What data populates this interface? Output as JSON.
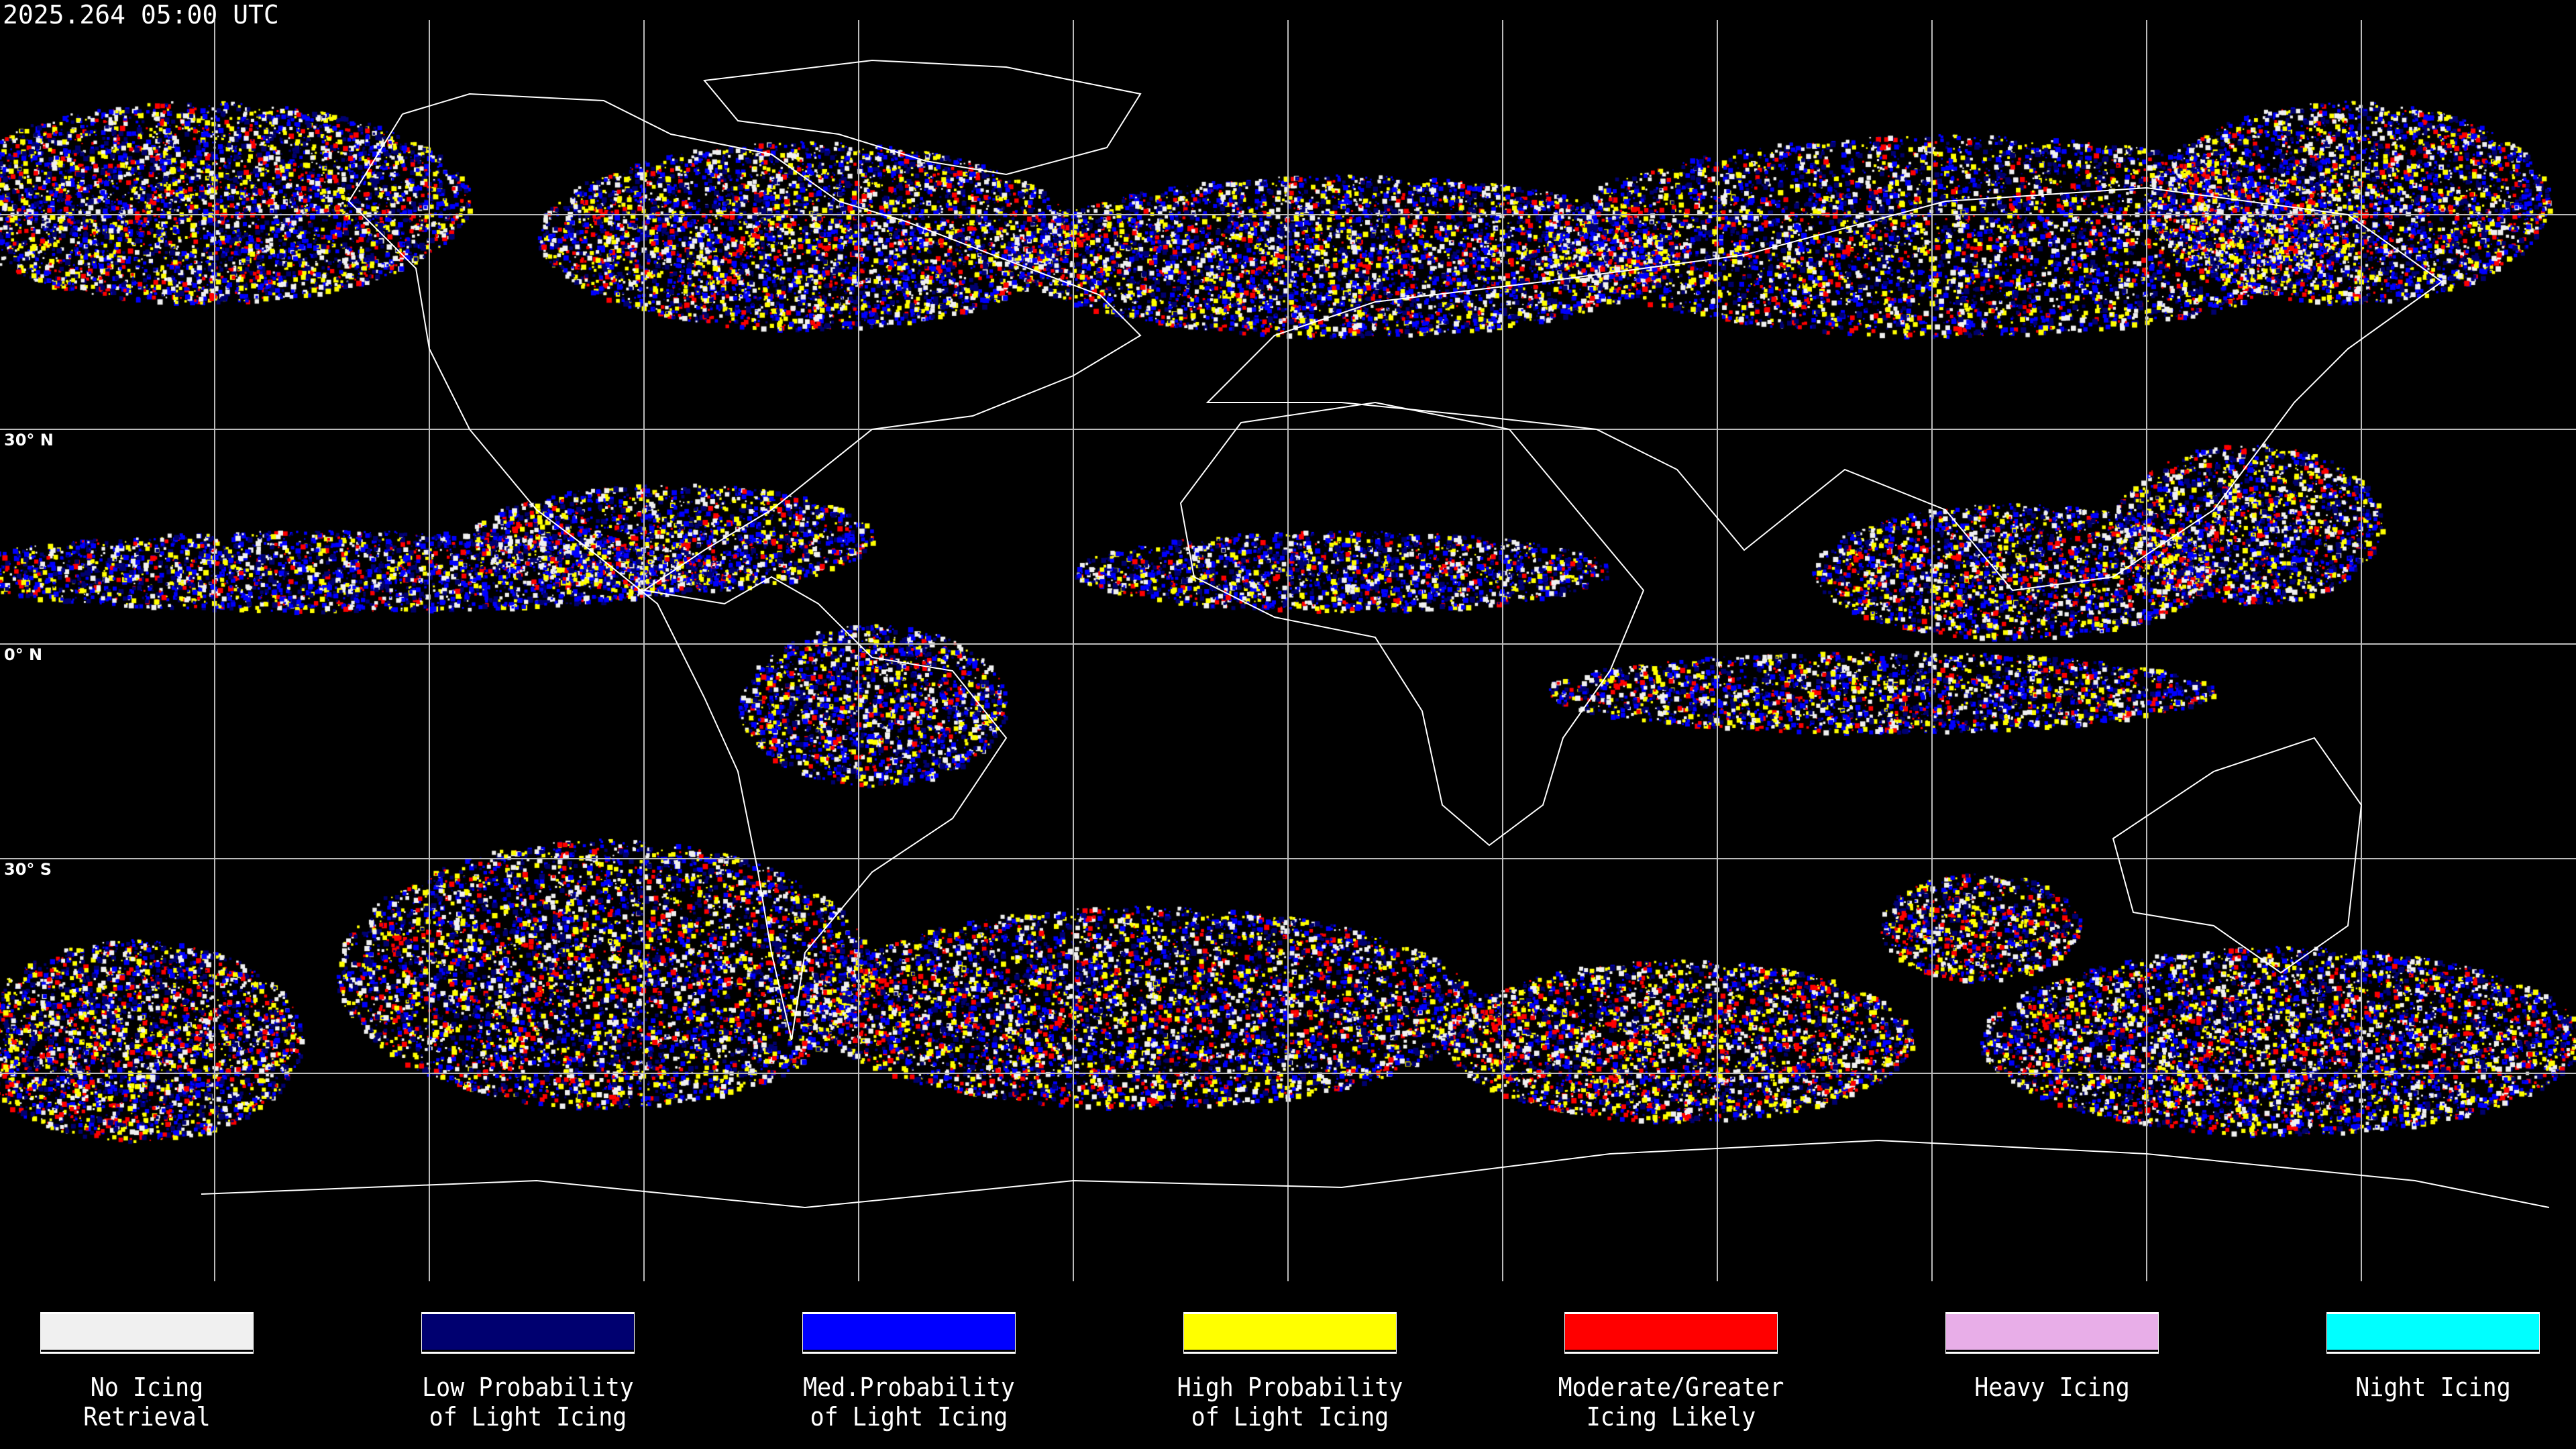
{
  "timestamp": "2025.264 05:00 UTC",
  "map": {
    "projection": "equirectangular",
    "gridlines": true,
    "latitude_labels": [
      "30° N",
      "0° N",
      "30° S"
    ],
    "background_color": "#000000",
    "coastline_color": "#ffffff"
  },
  "legend": [
    {
      "label": "No Icing\nRetrieval",
      "color": "#f0f0f0"
    },
    {
      "label": "Low Probability\nof Light Icing",
      "color": "#000070"
    },
    {
      "label": "Med.Probability\nof Light Icing",
      "color": "#0000ff"
    },
    {
      "label": "High Probability\nof Light Icing",
      "color": "#ffff00"
    },
    {
      "label": "Moderate/Greater\nIcing Likely",
      "color": "#ff0000"
    },
    {
      "label": "Heavy Icing",
      "color": "#e8aee8"
    },
    {
      "label": "Night Icing",
      "color": "#00ffff"
    }
  ]
}
